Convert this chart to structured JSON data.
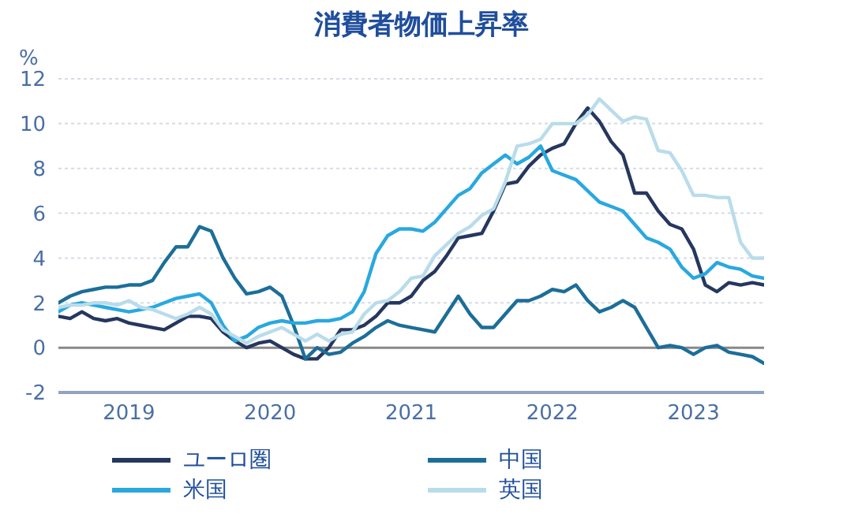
{
  "chart_data": {
    "type": "line",
    "title": "消費者物価上昇率",
    "ylabel": "%",
    "x": [
      "2019-01",
      "2019-02",
      "2019-03",
      "2019-04",
      "2019-05",
      "2019-06",
      "2019-07",
      "2019-08",
      "2019-09",
      "2019-10",
      "2019-11",
      "2019-12",
      "2020-01",
      "2020-02",
      "2020-03",
      "2020-04",
      "2020-05",
      "2020-06",
      "2020-07",
      "2020-08",
      "2020-09",
      "2020-10",
      "2020-11",
      "2020-12",
      "2021-01",
      "2021-02",
      "2021-03",
      "2021-04",
      "2021-05",
      "2021-06",
      "2021-07",
      "2021-08",
      "2021-09",
      "2021-10",
      "2021-11",
      "2021-12",
      "2022-01",
      "2022-02",
      "2022-03",
      "2022-04",
      "2022-05",
      "2022-06",
      "2022-07",
      "2022-08",
      "2022-09",
      "2022-10",
      "2022-11",
      "2022-12",
      "2023-01",
      "2023-02",
      "2023-03",
      "2023-04",
      "2023-05",
      "2023-06",
      "2023-07",
      "2023-08",
      "2023-09",
      "2023-10",
      "2023-11",
      "2023-12",
      "2024-01"
    ],
    "series": [
      {
        "name": "ユーロ圏",
        "color": "#26375f",
        "values": [
          1.4,
          1.3,
          1.6,
          1.3,
          1.2,
          1.3,
          1.1,
          1.0,
          0.9,
          0.8,
          1.1,
          1.4,
          1.4,
          1.3,
          0.7,
          0.3,
          0.0,
          0.2,
          0.3,
          0.0,
          -0.3,
          -0.5,
          -0.5,
          0.0,
          0.8,
          0.8,
          1.0,
          1.4,
          2.0,
          2.0,
          2.3,
          3.0,
          3.4,
          4.1,
          4.9,
          5.0,
          5.1,
          6.1,
          7.3,
          7.4,
          8.1,
          8.6,
          8.9,
          9.1,
          10.0,
          10.7,
          10.1,
          9.2,
          8.6,
          6.9,
          6.9,
          6.1,
          5.5,
          5.3,
          4.4,
          2.8,
          2.5,
          2.9,
          2.8,
          2.9,
          2.8
        ]
      },
      {
        "name": "中国",
        "color": "#1c6e98",
        "values": [
          2.0,
          2.3,
          2.5,
          2.6,
          2.7,
          2.7,
          2.8,
          2.8,
          3.0,
          3.8,
          4.5,
          4.5,
          5.4,
          5.2,
          4.0,
          3.1,
          2.4,
          2.5,
          2.7,
          2.3,
          1.0,
          -0.5,
          0.0,
          -0.3,
          -0.2,
          0.2,
          0.5,
          0.9,
          1.2,
          1.0,
          0.9,
          0.8,
          0.7,
          1.5,
          2.3,
          1.5,
          0.9,
          0.9,
          1.5,
          2.1,
          2.1,
          2.3,
          2.6,
          2.5,
          2.8,
          2.1,
          1.6,
          1.8,
          2.1,
          1.8,
          0.9,
          0.0,
          0.1,
          0.0,
          -0.3,
          0.0,
          0.1,
          -0.2,
          -0.3,
          -0.4,
          -0.7
        ]
      },
      {
        "name": "米国",
        "color": "#29a8df",
        "values": [
          1.6,
          1.9,
          2.0,
          1.9,
          1.8,
          1.7,
          1.6,
          1.7,
          1.8,
          2.0,
          2.2,
          2.3,
          2.4,
          2.0,
          1.0,
          0.3,
          0.5,
          0.9,
          1.1,
          1.2,
          1.1,
          1.1,
          1.2,
          1.2,
          1.3,
          1.6,
          2.5,
          4.2,
          5.0,
          5.3,
          5.3,
          5.2,
          5.6,
          6.2,
          6.8,
          7.1,
          7.8,
          8.2,
          8.6,
          8.2,
          8.5,
          9.0,
          7.9,
          7.7,
          7.5,
          7.0,
          6.5,
          6.3,
          6.1,
          5.5,
          4.9,
          4.7,
          4.4,
          3.6,
          3.1,
          3.3,
          3.8,
          3.6,
          3.5,
          3.2,
          3.1
        ]
      },
      {
        "name": "英国",
        "color": "#b9dcea",
        "values": [
          1.8,
          1.9,
          1.9,
          2.0,
          2.0,
          1.9,
          2.1,
          1.8,
          1.7,
          1.5,
          1.3,
          1.5,
          1.8,
          1.5,
          0.8,
          0.5,
          0.2,
          0.5,
          0.7,
          0.9,
          0.6,
          0.3,
          0.6,
          0.3,
          0.6,
          0.7,
          1.5,
          2.0,
          2.1,
          2.5,
          3.1,
          3.2,
          4.1,
          4.6,
          5.1,
          5.4,
          5.9,
          6.2,
          7.4,
          9.0,
          9.1,
          9.3,
          10.0,
          10.0,
          10.0,
          10.4,
          11.1,
          10.6,
          10.1,
          10.3,
          10.2,
          8.8,
          8.7,
          7.9,
          6.8,
          6.8,
          6.7,
          6.7,
          4.7,
          4.0,
          4.0
        ]
      }
    ],
    "xlim": [
      "2019-01",
      "2024-01"
    ],
    "xticks": [
      {
        "value": "2019-07",
        "label": "2019"
      },
      {
        "value": "2020-07",
        "label": "2020"
      },
      {
        "value": "2021-07",
        "label": "2021"
      },
      {
        "value": "2022-07",
        "label": "2022"
      },
      {
        "value": "2023-07",
        "label": "2023"
      }
    ],
    "ylim": [
      -2,
      12
    ],
    "yticks": [
      -2,
      0,
      2,
      4,
      6,
      8,
      10,
      12
    ],
    "grid": "y",
    "legend": "bottom",
    "marker": "none",
    "line_style": "solid",
    "ref_lines": [
      {
        "axis": "y",
        "value": 0,
        "color": "#888888"
      }
    ]
  }
}
